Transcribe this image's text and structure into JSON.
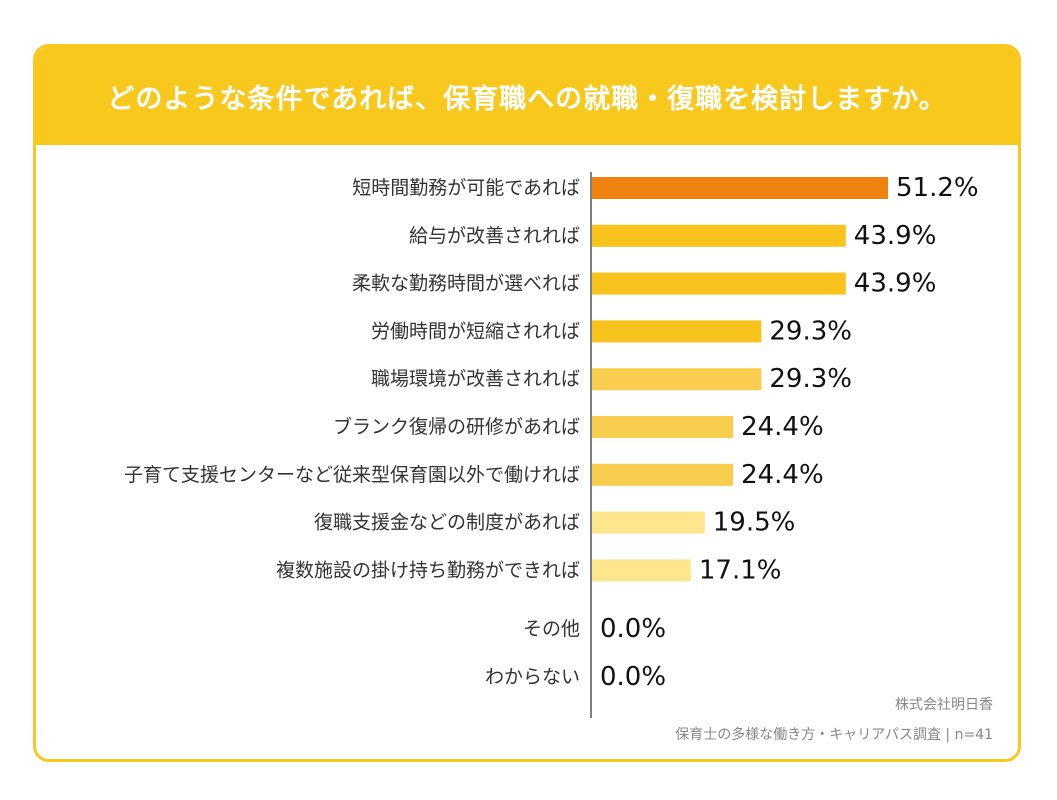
{
  "chart_data": {
    "type": "bar",
    "orientation": "horizontal",
    "title": "どのような条件であれば、保育職への就職・復職を検討しますか。",
    "categories": [
      "短時間勤務が可能であれば",
      "給与が改善されれば",
      "柔軟な勤務時間が選べれば",
      "労働時間が短縮されれば",
      "職場環境が改善されれば",
      "ブランク復帰の研修があれば",
      "子育て支援センターなど従来型保育園以外で働ければ",
      "復職支援金などの制度があれば",
      "複数施設の掛け持ち勤務ができれば",
      "その他",
      "わからない"
    ],
    "values": [
      51.2,
      43.9,
      43.9,
      29.3,
      29.3,
      24.4,
      24.4,
      19.5,
      17.1,
      0.0,
      0.0
    ],
    "value_labels": [
      "51.2%",
      "43.9%",
      "43.9%",
      "29.3%",
      "29.3%",
      "24.4%",
      "24.4%",
      "19.5%",
      "17.1%",
      "0.0%",
      "0.0%"
    ],
    "bar_colors": [
      "#F0820F",
      "#F8C31C",
      "#F8C31C",
      "#F8C31C",
      "#F9CD4E",
      "#F9CD4E",
      "#F9CD4E",
      "#FDE68E",
      "#FDE68E",
      "#FDE68E",
      "#FDE68E"
    ],
    "xlim": [
      0,
      51.2
    ],
    "grid": false,
    "legend": "none"
  },
  "theme": {
    "accent": "#F8C91C",
    "title_color": "#FFFFFF"
  },
  "source": {
    "company": "株式会社明日香",
    "survey": "保育士の多様な働き方・キャリアパス調査 | n=41"
  }
}
